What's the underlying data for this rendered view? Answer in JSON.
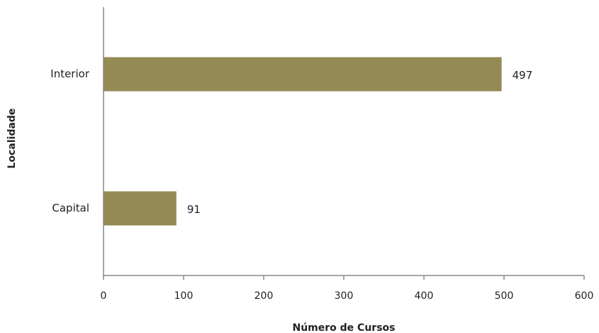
{
  "chart_data": {
    "type": "bar",
    "orientation": "horizontal",
    "categories": [
      "Interior",
      "Capital"
    ],
    "values": [
      497,
      91
    ],
    "color": "#948a54",
    "x_label": "Número de Cursos",
    "y_label": "Localidade",
    "xlim": [
      0,
      600
    ],
    "xticks": [
      0,
      100,
      200,
      300,
      400,
      500,
      600
    ],
    "grid": false
  }
}
